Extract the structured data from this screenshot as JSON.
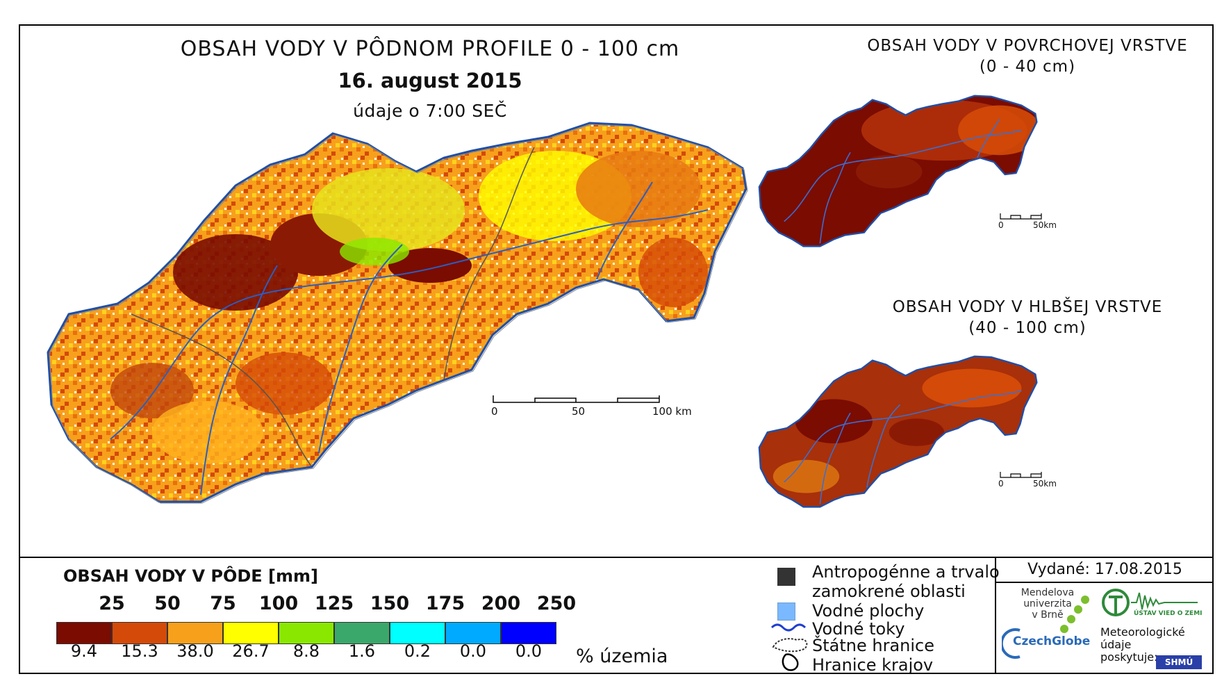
{
  "main_map": {
    "title": "OBSAH VODY V PÔDNOM PROFILE 0 - 100 cm",
    "date": "16. august 2015",
    "time_note": "údaje o 7:00 SEČ",
    "scale": {
      "labels": [
        "0",
        "50",
        "100 km"
      ]
    }
  },
  "top_inset": {
    "title_line1": "OBSAH VODY V POVRCHOVEJ VRSTVE",
    "title_line2": "(0 - 40 cm)",
    "scale": {
      "labels": [
        "0",
        "50km"
      ]
    }
  },
  "bottom_inset": {
    "title_line1": "OBSAH VODY V HLBŠEJ VRSTVE",
    "title_line2": "(40 - 100 cm)",
    "scale": {
      "labels": [
        "0",
        "50km"
      ]
    }
  },
  "legend": {
    "title": "OBSAH VODY V PÔDE [mm]",
    "thresholds": [
      "25",
      "50",
      "75",
      "100",
      "125",
      "150",
      "175",
      "200",
      "250"
    ],
    "classes": [
      {
        "color": "#7a0c02",
        "percent": "9.4"
      },
      {
        "color": "#d44a08",
        "percent": "15.3"
      },
      {
        "color": "#f7a01c",
        "percent": "38.0"
      },
      {
        "color": "#ffff00",
        "percent": "26.7"
      },
      {
        "color": "#8ae800",
        "percent": "8.8"
      },
      {
        "color": "#3aa86a",
        "percent": "1.6"
      },
      {
        "color": "#00ffff",
        "percent": "0.2"
      },
      {
        "color": "#00aaff",
        "percent": "0.0"
      },
      {
        "color": "#0000ff",
        "percent": "0.0"
      }
    ],
    "percent_unit": "% územia",
    "symbols": {
      "anthropogenic_1": "Antropogénne a trvalo",
      "anthropogenic_2": "zamokrené oblasti",
      "water_areas": "Vodné plochy",
      "rivers": "Vodné toky",
      "state_border": "Štátne hranice",
      "region_border": "Hranice krajov"
    }
  },
  "info": {
    "issued": "Vydané: 17.08.2015",
    "mendel_1": "Mendelova",
    "mendel_2": "univerzita",
    "mendel_3": "v Brně",
    "czechglobe": "CzechGlobe",
    "uvz_logo": "ÚSTAV VIED O ZEMI",
    "meteo_1": "Meteorologické",
    "meteo_2": "údaje",
    "meteo_3": "poskytuje:",
    "shmu": "SHMÚ"
  }
}
